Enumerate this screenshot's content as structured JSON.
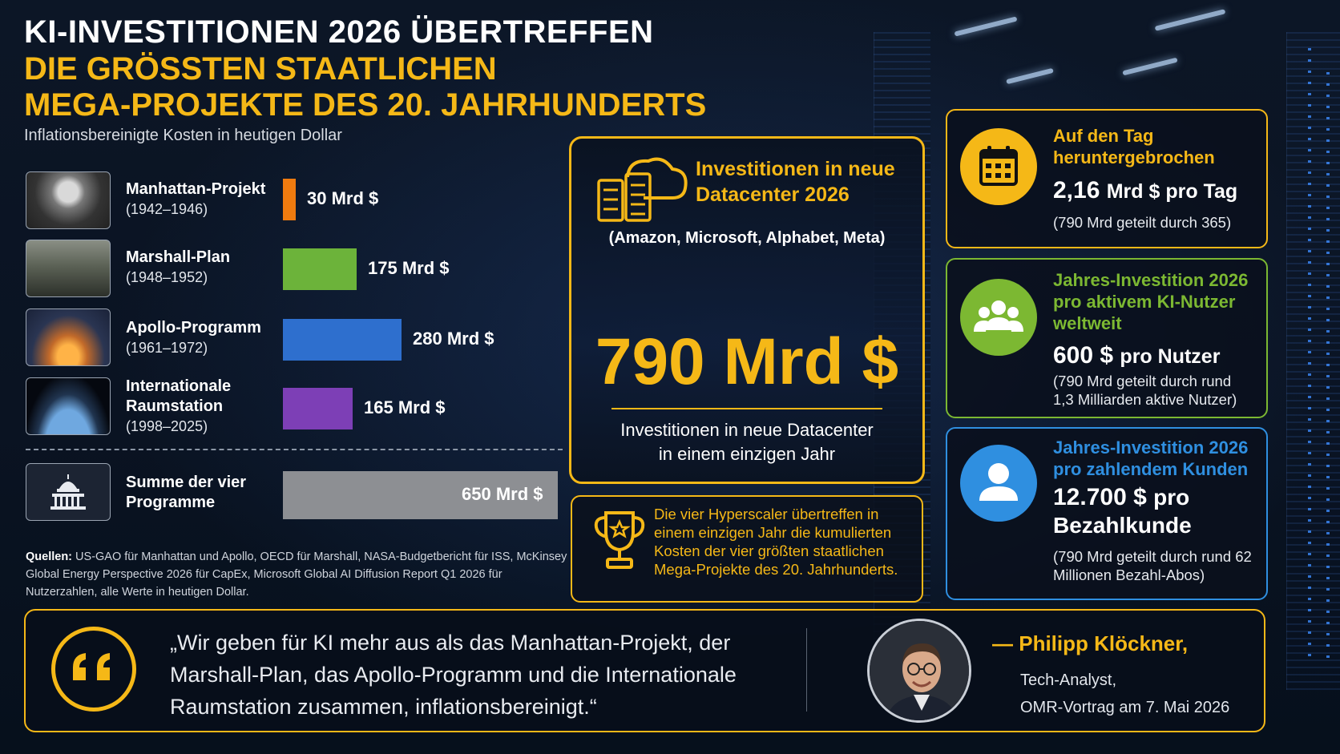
{
  "header": {
    "line1": "KI-INVESTITIONEN 2026 ÜBERTREFFEN",
    "line2": "DIE GRÖSSTEN STAATLICHEN",
    "line3": "MEGA-PROJEKTE DES 20. JAHRHUNDERTS",
    "subtitle": "Inflationsbereinigte Kosten in heutigen Dollar"
  },
  "chart_data": {
    "type": "bar",
    "orientation": "horizontal",
    "title": "Inflationsbereinigte Kosten in heutigen Dollar",
    "unit": "Mrd $",
    "categories": [
      "Manhattan-Projekt",
      "Marshall-Plan",
      "Apollo-Programm",
      "Internationale Raumstation"
    ],
    "years": [
      "(1942–1946)",
      "(1948–1952)",
      "(1961–1972)",
      "(1998–2025)"
    ],
    "values": [
      30,
      175,
      280,
      165
    ],
    "value_labels": [
      "30 Mrd $",
      "175 Mrd $",
      "280 Mrd $",
      "165 Mrd $"
    ],
    "colors": [
      "#ef7b0f",
      "#6cb33a",
      "#2e6fce",
      "#7d3fb6"
    ],
    "total": {
      "label": "Summe der vier Programme",
      "value": 650,
      "value_label": "650 Mrd $",
      "color": "#8d8f93"
    }
  },
  "sources": {
    "label": "Quellen:",
    "text": "US-GAO für Manhattan und Apollo, OECD für Marshall, NASA-Budgetbericht für ISS, McKinsey Global Energy Perspective 2026 für CapEx, Microsoft Global AI Diffusion Report Q1 2026 für Nutzerzahlen, alle Werte in heutigen Dollar."
  },
  "center": {
    "title": "Investitionen in neue Datacenter 2026",
    "companies": "(Amazon, Microsoft, Alphabet, Meta)",
    "amount": "790 Mrd $",
    "caption_line1": "Investitionen in neue Datacenter",
    "caption_line2": "in einem einzigen Jahr"
  },
  "trophy": {
    "text": "Die vier Hyperscaler übertreffen in einem einzigen Jahr die kumulierten Kosten der vier größten staatlichen Mega-Projekte des 20. Jahrhunderts."
  },
  "cards": [
    {
      "title": "Auf den Tag heruntergebrochen",
      "main": "2,16",
      "unit": "Mrd $ pro Tag",
      "note": "(790 Mrd geteilt durch 365)",
      "icon": "calendar-icon",
      "color": "#f5b817"
    },
    {
      "title": "Jahres-Investition 2026 pro aktivem KI-Nutzer weltweit",
      "main": "600 $",
      "unit": "pro Nutzer",
      "note": "(790 Mrd geteilt durch rund 1,3 Milliarden aktive Nutzer)",
      "icon": "users-icon",
      "color": "#7cb832"
    },
    {
      "title": "Jahres-Investition 2026 pro zahlendem Kunden",
      "main": "12.700 $",
      "unit": "pro Bezahlkunde",
      "note": "(790 Mrd geteilt durch rund 62 Millionen Bezahl-Abos)",
      "icon": "user-icon",
      "color": "#2f8fe0"
    }
  ],
  "quote": {
    "text": "„Wir geben für KI mehr aus als das Manhattan-Projekt, der Marshall-Plan, das Apollo-Programm und die Internationale Raumstation zusammen, inflationsbereinigt.“",
    "author": "— Philipp Klöckner,",
    "role_line1": "Tech-Analyst,",
    "role_line2": "OMR-Vortrag am 7. Mai 2026"
  },
  "colors": {
    "accent": "#f5b817",
    "background": "#0a1220"
  }
}
